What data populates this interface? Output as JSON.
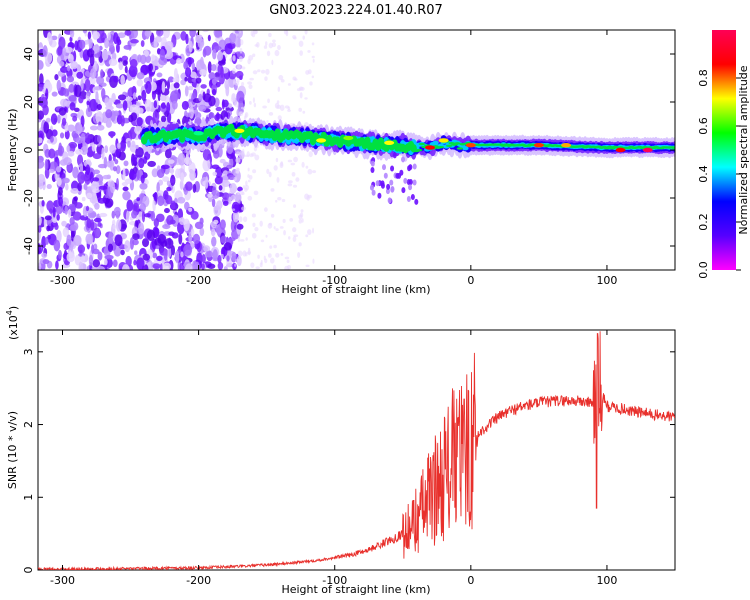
{
  "title": "GN03.2023.224.01.40.R07",
  "chart_data": [
    {
      "type": "heatmap",
      "xlabel": "Height of straight line (km)",
      "ylabel": "Frequency (Hz)",
      "xlim": [
        -318,
        150
      ],
      "ylim": [
        -50,
        50
      ],
      "xticks": [
        -300,
        -200,
        -100,
        0,
        100
      ],
      "yticks": [
        -40,
        -20,
        0,
        20,
        40
      ],
      "colorbar": {
        "label": "Normalized spectral amplitude",
        "range": [
          0,
          1
        ],
        "ticks": [
          "0.0",
          "0.2",
          "0.4",
          "0.6",
          "0.8"
        ],
        "colors": [
          "#ff00ff",
          "#5500ff",
          "#0000ff",
          "#00ffff",
          "#00ff00",
          "#ffff00",
          "#ff0000",
          "#ff0055"
        ]
      },
      "ridge": {
        "x": [
          -240,
          -220,
          -200,
          -180,
          -160,
          -140,
          -120,
          -100,
          -80,
          -60,
          -50,
          -40,
          -30,
          -20,
          -10,
          0,
          50,
          100,
          150
        ],
        "y": [
          5,
          6,
          6,
          8,
          7,
          6,
          5,
          4,
          3,
          2,
          2,
          1,
          1,
          3,
          2,
          2,
          2,
          1,
          1
        ]
      }
    },
    {
      "type": "line",
      "xlabel": "Height of straight line (km)",
      "ylabel": "SNR (10 * v/v)",
      "yscale_label": "(x10",
      "yscale_exp": "4",
      "yscale_close": ")",
      "xlim": [
        -318,
        150
      ],
      "ylim": [
        0,
        3.3
      ],
      "xticks": [
        -300,
        -200,
        -100,
        0,
        100
      ],
      "yticks": [
        0,
        1,
        2,
        3
      ],
      "color": "#e8302c",
      "x": [
        -318,
        -250,
        -200,
        -170,
        -150,
        -130,
        -110,
        -90,
        -75,
        -65,
        -55,
        -45,
        -40,
        -35,
        -30,
        -25,
        -20,
        -15,
        -10,
        -5,
        0,
        10,
        20,
        30,
        40,
        50,
        60,
        70,
        80,
        90,
        93,
        100,
        110,
        120,
        130,
        140,
        150
      ],
      "y": [
        0.01,
        0.02,
        0.03,
        0.05,
        0.07,
        0.1,
        0.14,
        0.2,
        0.28,
        0.36,
        0.45,
        0.55,
        0.7,
        0.85,
        1.0,
        1.15,
        1.3,
        1.45,
        1.55,
        1.65,
        1.75,
        1.95,
        2.1,
        2.2,
        2.26,
        2.3,
        2.32,
        2.33,
        2.32,
        2.3,
        2.6,
        2.25,
        2.22,
        2.18,
        2.15,
        2.12,
        2.1
      ]
    }
  ]
}
